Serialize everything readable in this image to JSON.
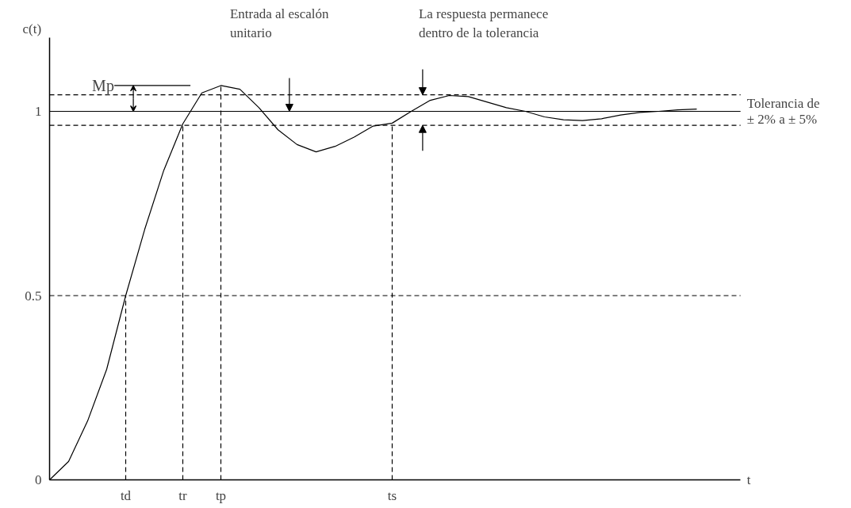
{
  "chart_data": {
    "type": "line",
    "xlabel": "t",
    "ylabel": "c(t)",
    "categories": [
      null,
      null,
      null,
      null,
      "td",
      null,
      null,
      "tr",
      null,
      "tp",
      null,
      null,
      null,
      null,
      null,
      null,
      null,
      null,
      "ts",
      null,
      null,
      null,
      null,
      null,
      null,
      null,
      null,
      null,
      null,
      null,
      null,
      null,
      null,
      null,
      null
    ],
    "ylim": [
      0,
      1.2
    ],
    "yticks": [
      0,
      0.5,
      1
    ],
    "grid": false,
    "line_style": "solid",
    "marker": "none",
    "series": [
      {
        "color": "#000000",
        "values": [
          0,
          0.05,
          0.16,
          0.3,
          0.5,
          0.68,
          0.84,
          0.966,
          1.05,
          1.07,
          1.06,
          1.01,
          0.95,
          0.91,
          0.89,
          0.905,
          0.93,
          0.96,
          0.968,
          1.0,
          1.03,
          1.043,
          1.04,
          1.025,
          1.01,
          1.0,
          0.985,
          0.977,
          0.975,
          0.98,
          0.99,
          0.997,
          1.0,
          1.004,
          1.006
        ]
      }
    ],
    "ref_lines": [
      {
        "axis": "y",
        "value": 1,
        "line_style": "solid",
        "color": "#000000",
        "label": "Tolerancia de\n± 2% a ± 5%"
      },
      {
        "axis": "y",
        "value": 1.045,
        "line_style": "dashed",
        "color": "#000000"
      },
      {
        "axis": "y",
        "value": 0.962,
        "line_style": "dashed",
        "color": "#000000"
      },
      {
        "axis": "y",
        "value": 0.5,
        "line_style": "dashed",
        "color": "#000000"
      },
      {
        "axis": "x",
        "value": "td",
        "line_style": "dashed",
        "color": "#000000"
      },
      {
        "axis": "x",
        "value": "tr",
        "line_style": "dashed",
        "color": "#000000"
      },
      {
        "axis": "x",
        "value": "tp",
        "line_style": "dashed",
        "color": "#000000"
      },
      {
        "axis": "x",
        "value": "ts",
        "line_style": "dashed",
        "color": "#000000"
      }
    ],
    "annotations": [
      "Mp",
      "Entrada al escalón\nunitario",
      "La respuesta permanece\ndentro de la tolerancia"
    ]
  }
}
